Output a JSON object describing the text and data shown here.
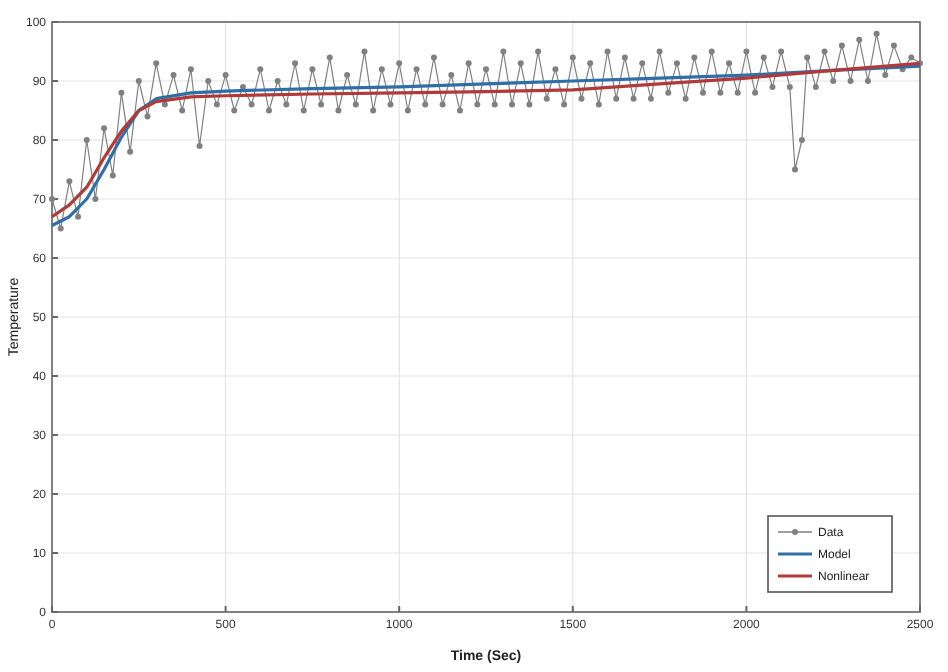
{
  "chart_data": {
    "type": "line",
    "xlabel": "Time (Sec)",
    "ylabel": "Temperature",
    "xlim": [
      0,
      2500
    ],
    "xticks": [
      0,
      500,
      1000,
      1500,
      2000,
      2500
    ],
    "ylim": [
      0,
      100
    ],
    "yticks": [
      0,
      10,
      20,
      30,
      40,
      50,
      60,
      70,
      80,
      90,
      100
    ],
    "grid": true,
    "legend": "bottom right",
    "x": [
      0,
      25,
      50,
      75,
      100,
      125,
      150,
      175,
      200,
      225,
      250,
      275,
      300,
      325,
      350,
      375,
      400,
      425,
      450,
      475,
      500,
      525,
      550,
      575,
      600,
      625,
      650,
      675,
      700,
      725,
      750,
      775,
      800,
      825,
      850,
      875,
      900,
      925,
      950,
      975,
      1000,
      1025,
      1050,
      1075,
      1100,
      1125,
      1150,
      1175,
      1200,
      1225,
      1250,
      1275,
      1300,
      1325,
      1350,
      1375,
      1400,
      1425,
      1450,
      1475,
      1500,
      1525,
      1550,
      1575,
      1600,
      1625,
      1650,
      1675,
      1700,
      1725,
      1750,
      1775,
      1800,
      1825,
      1850,
      1875,
      1900,
      1925,
      1950,
      1975,
      2000,
      2025,
      2050,
      2075,
      2100,
      2125,
      2140,
      2160,
      2175,
      2200,
      2225,
      2250,
      2275,
      2300,
      2325,
      2350,
      2375,
      2400,
      2425,
      2450,
      2475,
      2500
    ],
    "series": [
      {
        "name": "Data",
        "color": "#808080",
        "marker": "circle",
        "values": [
          70,
          65,
          73,
          67,
          80,
          70,
          82,
          74,
          88,
          78,
          90,
          84,
          93,
          86,
          91,
          85,
          92,
          79,
          90,
          86,
          91,
          85,
          89,
          86,
          92,
          85,
          90,
          86,
          93,
          85,
          92,
          86,
          94,
          85,
          91,
          86,
          95,
          85,
          92,
          86,
          93,
          85,
          92,
          86,
          94,
          86,
          91,
          85,
          93,
          86,
          92,
          86,
          95,
          86,
          93,
          86,
          95,
          87,
          92,
          86,
          94,
          87,
          93,
          86,
          95,
          87,
          94,
          87,
          93,
          87,
          95,
          88,
          93,
          87,
          94,
          88,
          95,
          88,
          93,
          88,
          95,
          88,
          94,
          89,
          95,
          89,
          75,
          80,
          94,
          89,
          95,
          90,
          96,
          90,
          97,
          90,
          98,
          91,
          96,
          92,
          94,
          93
        ]
      },
      {
        "name": "Model",
        "color": "#2e6fa8",
        "marker": "none",
        "x": [
          0,
          50,
          100,
          150,
          200,
          250,
          300,
          400,
          500,
          750,
          1000,
          1250,
          1500,
          1750,
          2000,
          2250,
          2500
        ],
        "values": [
          65.5,
          67,
          70,
          75,
          80.5,
          85,
          87,
          88,
          88.3,
          88.7,
          89,
          89.5,
          90,
          90.5,
          91,
          91.8,
          92.5
        ]
      },
      {
        "name": "Nonlinear",
        "color": "#b03a3a",
        "marker": "none",
        "x": [
          0,
          50,
          100,
          150,
          200,
          250,
          300,
          400,
          500,
          750,
          1000,
          1250,
          1500,
          1750,
          2000,
          2250,
          2500
        ],
        "values": [
          67,
          69,
          72,
          77,
          81.5,
          85,
          86.5,
          87.3,
          87.5,
          87.8,
          88,
          88.2,
          88.5,
          89.5,
          90.5,
          91.8,
          93
        ]
      }
    ]
  }
}
